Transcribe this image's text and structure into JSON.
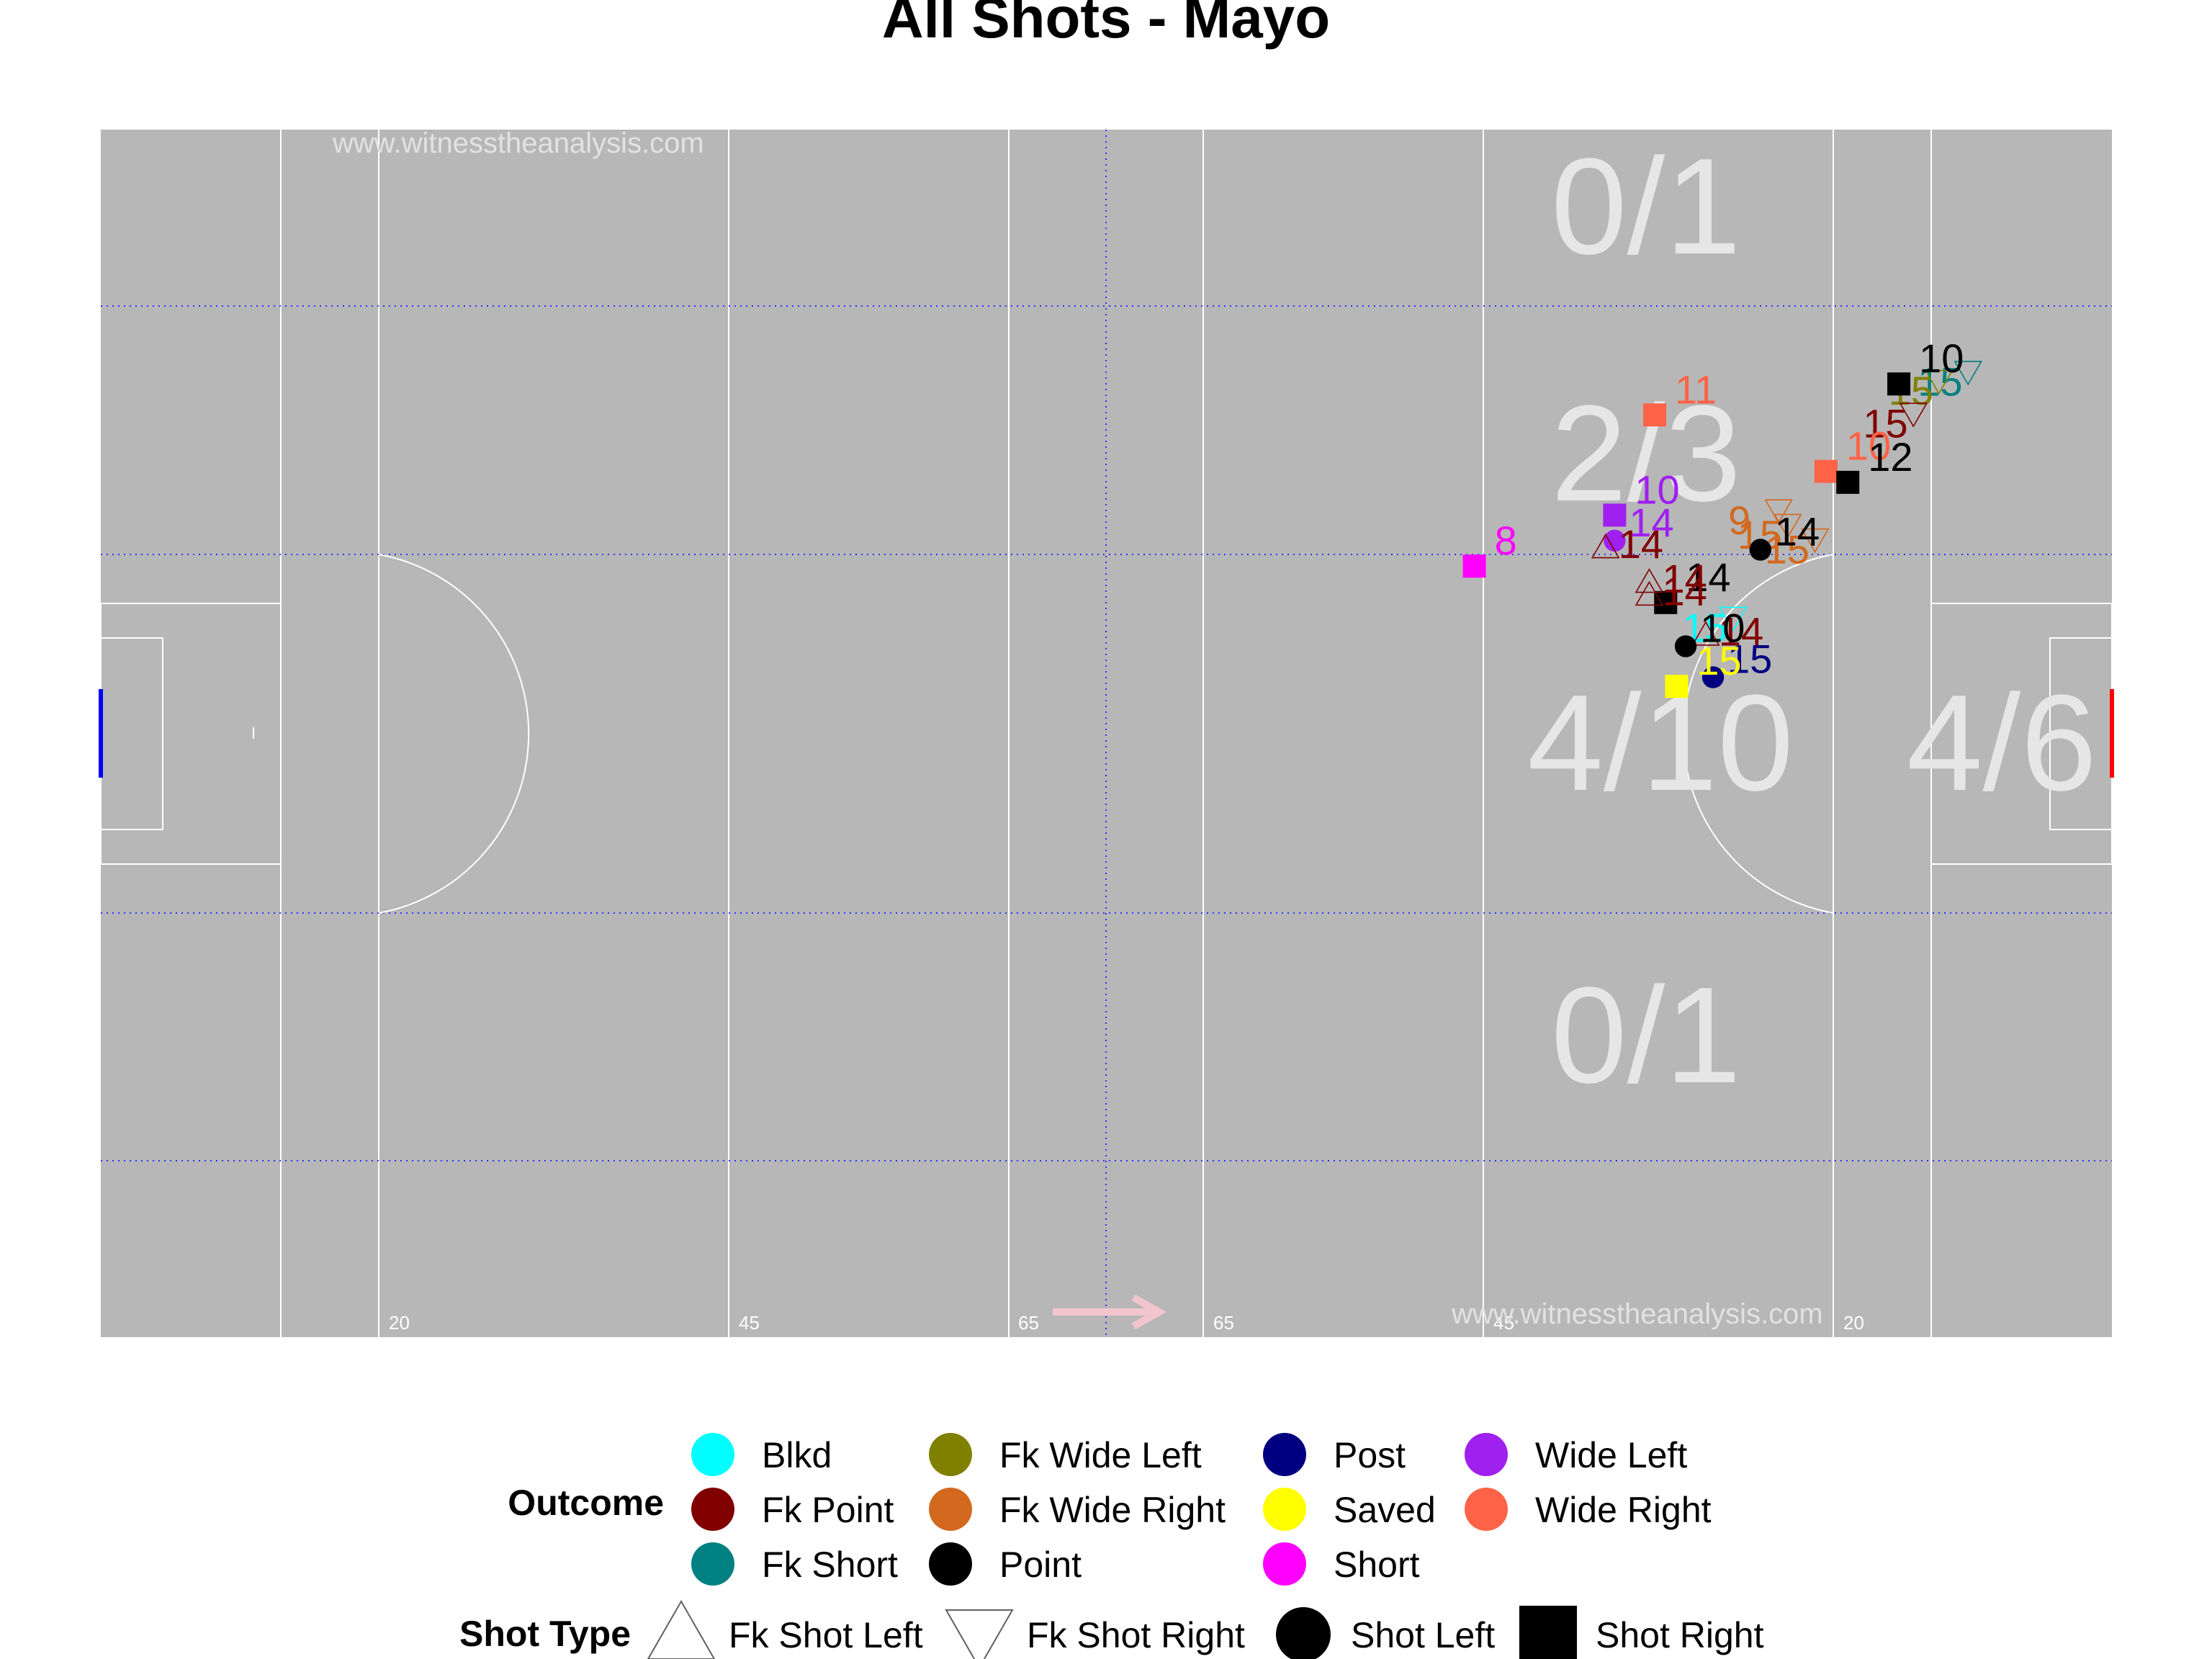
{
  "chart_data": {
    "type": "scatter",
    "title": "All Shots - Mayo",
    "watermarks": [
      "www.witnesstheanalysis.com",
      "www.witnesstheanalysis.com"
    ],
    "distance_labels": [
      "20",
      "45",
      "65",
      "65",
      "45",
      "20"
    ],
    "zones": [
      {
        "id": "top",
        "text": "0/1"
      },
      {
        "id": "upper",
        "text": "2/3"
      },
      {
        "id": "center",
        "text": "4/10"
      },
      {
        "id": "small",
        "text": "4/6"
      },
      {
        "id": "bottom",
        "text": "0/1"
      }
    ],
    "outcome_colors": {
      "Blkd": "#00FFFF",
      "Fk Point": "#800000",
      "Fk Short": "#008080",
      "Fk Wide Left": "#808000",
      "Fk Wide Right": "#D2691E",
      "Point": "#000000",
      "Post": "#000080",
      "Saved": "#FFFF00",
      "Short": "#FF00FF",
      "Wide Left": "#A020F0",
      "Wide Right": "#FF6347"
    },
    "shots": [
      {
        "x": 1.99,
        "y": 0.74,
        "outcome": "Fk Short",
        "type": "Fk Shot Right",
        "label": "15"
      },
      {
        "x": 1.94,
        "y": 0.58,
        "outcome": "Fk Wide Left",
        "type": "Fk Shot Right",
        "label": "15"
      },
      {
        "x": 1.76,
        "y": 0.44,
        "outcome": "Fk Point",
        "type": "Fk Shot Right",
        "label": "15"
      },
      {
        "x": 1.92,
        "y": 0.36,
        "outcome": "Point",
        "type": "Shot Right",
        "label": "10"
      },
      {
        "x": 1.07,
        "y": -0.1,
        "outcome": "Fk Wide Right",
        "type": "Fk Shot Right",
        "label": "15"
      },
      {
        "x": 1.15,
        "y": -0.25,
        "outcome": "Fk Wide Right",
        "type": "Fk Shot Right",
        "label": "15"
      },
      {
        "x": 1.44,
        "y": -0.04,
        "outcome": "Wide Right",
        "type": "Shot Right",
        "label": "10"
      },
      {
        "x": 1.38,
        "y": 0.08,
        "outcome": "Point",
        "type": "Shot Right",
        "label": "12"
      },
      {
        "x": 1.23,
        "y": -0.3,
        "outcome": "Fk Wide Right",
        "type": "Fk Shot Right",
        "label": "9"
      },
      {
        "x": 1.01,
        "y": -0.4,
        "outcome": "Point",
        "type": "Shot Left",
        "label": "14"
      },
      {
        "x": 0.64,
        "y": -0.55,
        "outcome": "Blkd",
        "type": "Fk Shot Right",
        "label": "15"
      },
      {
        "x": 0.54,
        "y": -0.7,
        "outcome": "Fk Point",
        "type": "Fk Shot Left",
        "label": "14"
      },
      {
        "x": 0.31,
        "y": -0.66,
        "outcome": "Post",
        "type": "Shot Left",
        "label": "15"
      },
      {
        "x": 0.48,
        "y": -0.81,
        "outcome": "Point",
        "type": "Shot Left",
        "label": "10"
      },
      {
        "x": 0.26,
        "y": -0.86,
        "outcome": "Saved",
        "type": "Shot Right",
        "label": "15"
      },
      {
        "x": 0.72,
        "y": -0.92,
        "outcome": "Point",
        "type": "Shot Right",
        "label": "14"
      },
      {
        "x": 0.76,
        "y": -1.01,
        "outcome": "Fk Point",
        "type": "Fk Shot Left",
        "label": "14"
      },
      {
        "x": 0.83,
        "y": -1.01,
        "outcome": "Fk Point",
        "type": "Fk Shot Left",
        "label": "14"
      },
      {
        "x": 1.06,
        "y": -1.2,
        "outcome": "Wide Left",
        "type": "Shot Left",
        "label": "14"
      },
      {
        "x": 1.2,
        "y": -1.2,
        "outcome": "Wide Left",
        "type": "Shot Right",
        "label": "10"
      },
      {
        "x": 1.02,
        "y": -1.25,
        "outcome": "Fk Point",
        "type": "Fk Shot Left",
        "label": "14"
      },
      {
        "x": 1.75,
        "y": -0.98,
        "outcome": "Wide Right",
        "type": "Shot Right",
        "label": "11"
      },
      {
        "x": 0.92,
        "y": -1.97,
        "outcome": "Short",
        "type": "Shot Right",
        "label": "8"
      }
    ],
    "legend": {
      "outcome_title": "Outcome",
      "outcomes": [
        "Blkd",
        "Fk Point",
        "Fk Short",
        "Fk Wide Left",
        "Fk Wide Right",
        "Point",
        "Post",
        "Saved",
        "Short",
        "Wide Left",
        "Wide Right"
      ],
      "shot_type_title": "Shot Type",
      "shot_types": [
        "Fk Shot Left",
        "Fk Shot Right",
        "Shot Left",
        "Shot Right"
      ]
    }
  }
}
